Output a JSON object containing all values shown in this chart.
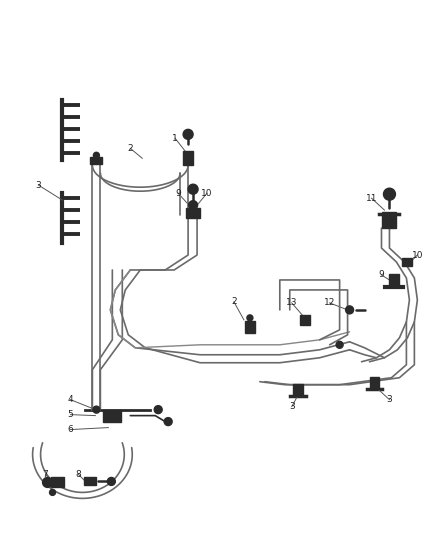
{
  "bg_color": "#ffffff",
  "line_color": "#6a6a6a",
  "component_color": "#2a2a2a",
  "figsize": [
    4.38,
    5.33
  ],
  "dpi": 100,
  "lw_main": 1.2,
  "lw_comp": 1.8
}
